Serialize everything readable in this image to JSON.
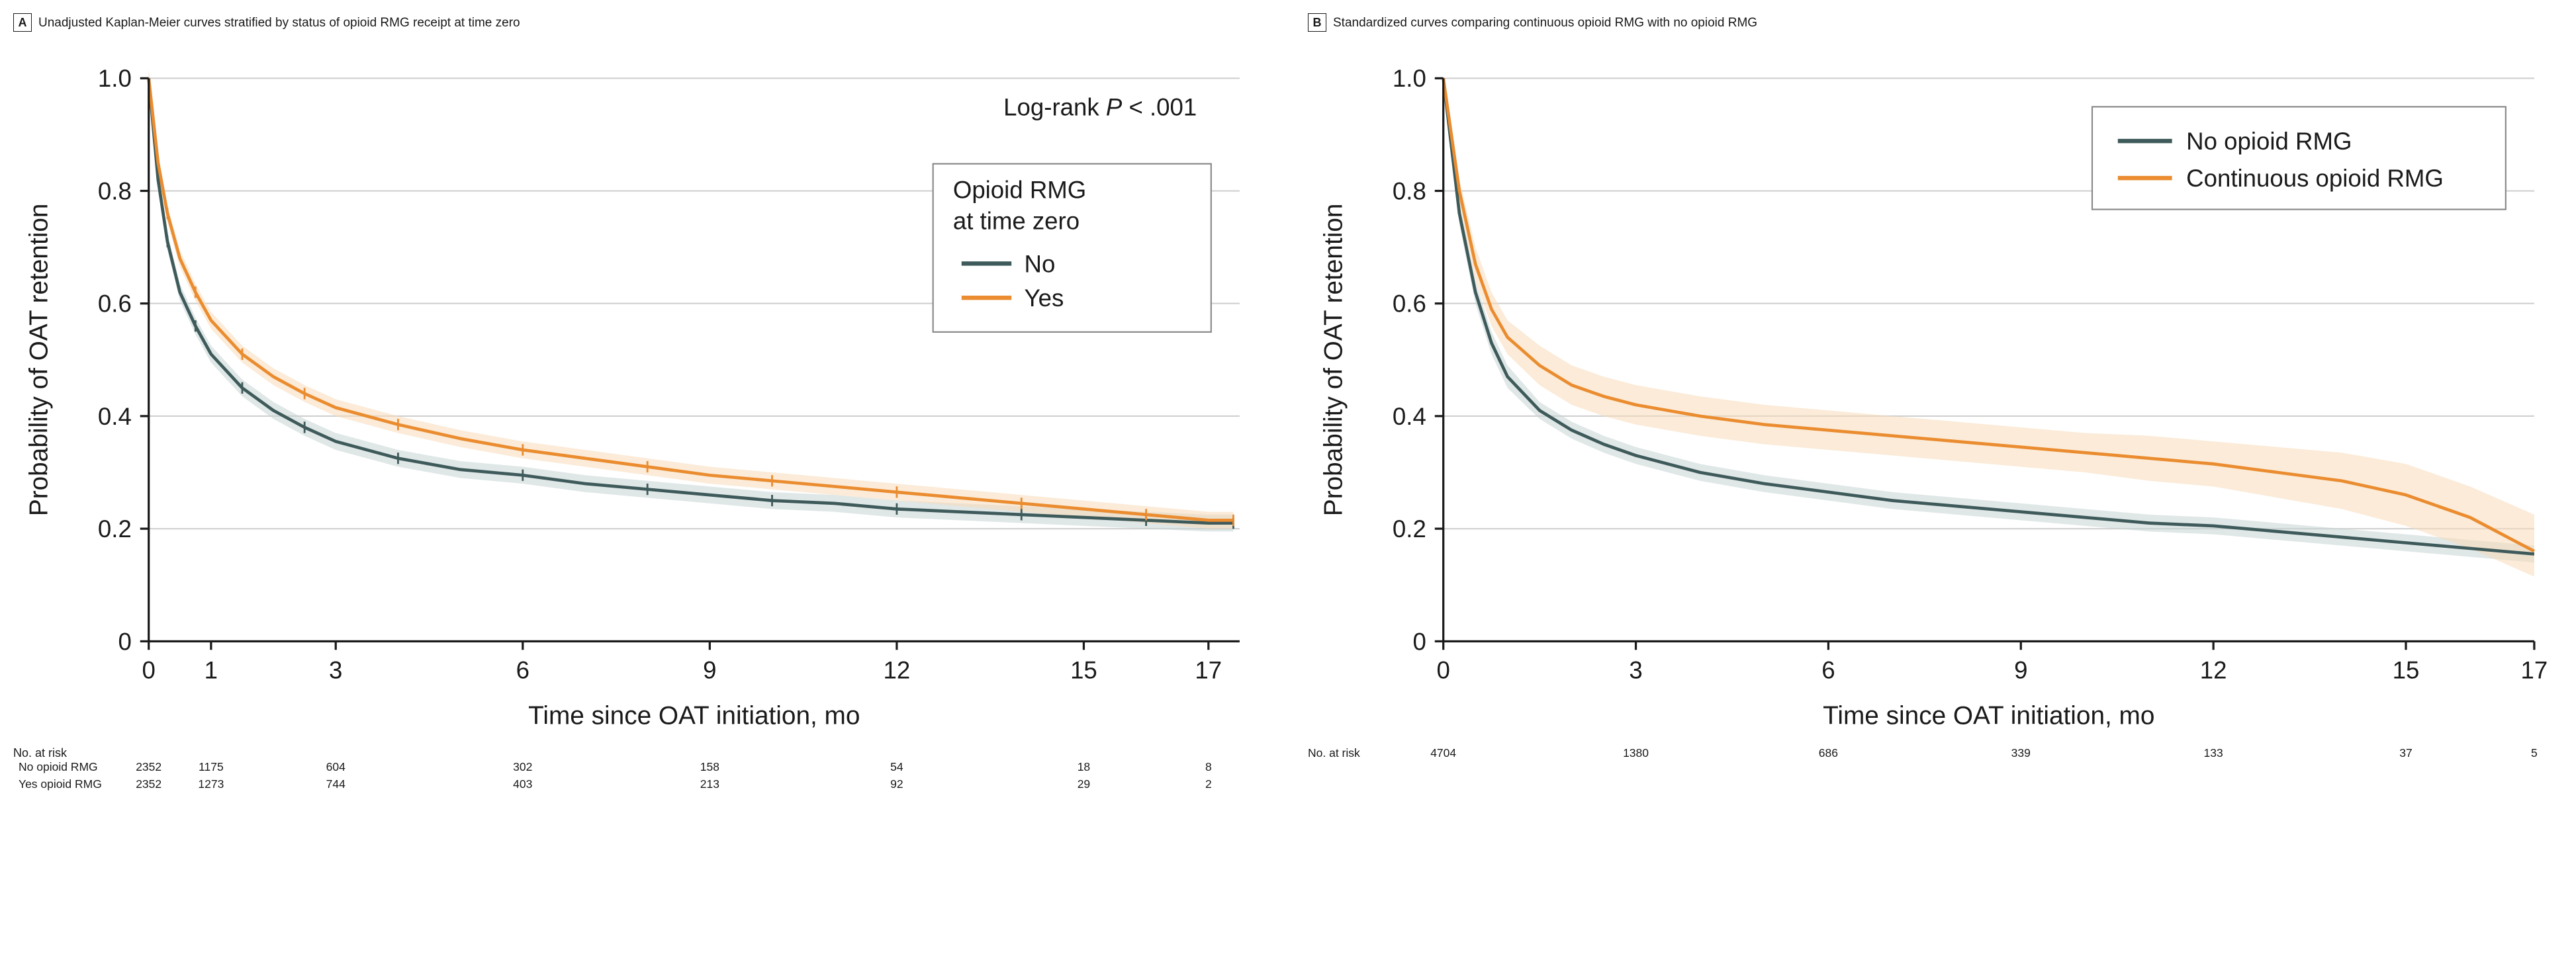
{
  "colors": {
    "series_no": "#3e5a5a",
    "series_no_ci": "#c7d4d4",
    "series_yes": "#ea8c2f",
    "series_yes_ci": "#f8dbb8",
    "axis": "#1a1a1a",
    "grid": "#d0d0d0",
    "text": "#1a1a1a",
    "legend_border": "#888888",
    "background": "#ffffff"
  },
  "typography": {
    "title_fontsize": 19,
    "axis_label_fontsize": 18,
    "tick_fontsize": 17,
    "legend_fontsize": 17,
    "annotation_fontsize": 17,
    "risk_fontsize": 17.5,
    "font_family": "Arial, Helvetica, sans-serif"
  },
  "panelA": {
    "letter": "A",
    "title": "Unadjusted Kaplan-Meier curves stratified by status of opioid RMG receipt at time zero",
    "ylabel": "Probability of OAT retention",
    "xlabel": "Time since OAT initiation, mo",
    "ylim": [
      0,
      1.0
    ],
    "yticks": [
      0,
      0.2,
      0.4,
      0.6,
      0.8,
      1.0
    ],
    "xlim": [
      0,
      17.5
    ],
    "xticks": [
      0,
      1,
      3,
      6,
      9,
      12,
      15,
      17
    ],
    "annotation": "Log-rank P < .001",
    "legend_title": "Opioid RMG at time zero",
    "legend_items": [
      {
        "label": "No",
        "color": "#3e5a5a"
      },
      {
        "label": "Yes",
        "color": "#ea8c2f"
      }
    ],
    "series_no": {
      "x": [
        0,
        0.15,
        0.3,
        0.5,
        0.75,
        1,
        1.5,
        2,
        2.5,
        3,
        4,
        5,
        6,
        7,
        8,
        9,
        10,
        11,
        12,
        13,
        14,
        15,
        16,
        17,
        17.4
      ],
      "y": [
        1.0,
        0.82,
        0.71,
        0.62,
        0.56,
        0.51,
        0.45,
        0.41,
        0.38,
        0.355,
        0.325,
        0.305,
        0.295,
        0.28,
        0.27,
        0.26,
        0.25,
        0.245,
        0.235,
        0.23,
        0.225,
        0.22,
        0.215,
        0.21,
        0.21
      ]
    },
    "series_yes": {
      "x": [
        0,
        0.15,
        0.3,
        0.5,
        0.75,
        1,
        1.5,
        2,
        2.5,
        3,
        4,
        5,
        6,
        7,
        8,
        9,
        10,
        11,
        12,
        13,
        14,
        15,
        16,
        17,
        17.4
      ],
      "y": [
        1.0,
        0.85,
        0.76,
        0.68,
        0.62,
        0.57,
        0.51,
        0.47,
        0.44,
        0.415,
        0.385,
        0.36,
        0.34,
        0.325,
        0.31,
        0.295,
        0.285,
        0.275,
        0.265,
        0.255,
        0.245,
        0.235,
        0.225,
        0.215,
        0.215
      ]
    },
    "ci_halfwidth": 0.015,
    "line_width": 2.2,
    "risk_label": "No. at risk",
    "risk_rows": [
      {
        "label": "No opioid RMG",
        "values": [
          2352,
          1175,
          604,
          302,
          158,
          54,
          18,
          8
        ]
      },
      {
        "label": "Yes opioid RMG",
        "values": [
          2352,
          1273,
          744,
          403,
          213,
          92,
          29,
          2
        ]
      }
    ]
  },
  "panelB": {
    "letter": "B",
    "title": "Standardized curves comparing continuous opioid RMG with no opioid RMG",
    "ylabel": "Probability of OAT retention",
    "xlabel": "Time since OAT initiation, mo",
    "ylim": [
      0,
      1.0
    ],
    "yticks": [
      0,
      0.2,
      0.4,
      0.6,
      0.8,
      1.0
    ],
    "xlim": [
      0,
      17
    ],
    "xticks": [
      0,
      3,
      6,
      9,
      12,
      15,
      17
    ],
    "legend_items": [
      {
        "label": "No opioid RMG",
        "color": "#3e5a5a"
      },
      {
        "label": "Continuous opioid RMG",
        "color": "#ea8c2f"
      }
    ],
    "series_no": {
      "x": [
        0,
        0.25,
        0.5,
        0.75,
        1,
        1.5,
        2,
        2.5,
        3,
        4,
        5,
        6,
        7,
        8,
        9,
        10,
        11,
        12,
        13,
        14,
        15,
        16,
        17
      ],
      "y": [
        1.0,
        0.76,
        0.62,
        0.53,
        0.47,
        0.41,
        0.375,
        0.35,
        0.33,
        0.3,
        0.28,
        0.265,
        0.25,
        0.24,
        0.23,
        0.22,
        0.21,
        0.205,
        0.195,
        0.185,
        0.175,
        0.165,
        0.155
      ],
      "ci_lo": [
        1.0,
        0.74,
        0.6,
        0.51,
        0.45,
        0.395,
        0.36,
        0.335,
        0.315,
        0.285,
        0.265,
        0.25,
        0.235,
        0.225,
        0.215,
        0.205,
        0.195,
        0.19,
        0.18,
        0.17,
        0.16,
        0.15,
        0.14
      ],
      "ci_hi": [
        1.0,
        0.78,
        0.64,
        0.55,
        0.49,
        0.425,
        0.39,
        0.365,
        0.345,
        0.315,
        0.295,
        0.28,
        0.265,
        0.255,
        0.245,
        0.235,
        0.225,
        0.22,
        0.21,
        0.2,
        0.19,
        0.18,
        0.17
      ]
    },
    "series_yes": {
      "x": [
        0,
        0.25,
        0.5,
        0.75,
        1,
        1.5,
        2,
        2.5,
        3,
        4,
        5,
        6,
        7,
        8,
        9,
        10,
        11,
        12,
        13,
        14,
        15,
        16,
        17
      ],
      "y": [
        1.0,
        0.8,
        0.67,
        0.59,
        0.54,
        0.49,
        0.455,
        0.435,
        0.42,
        0.4,
        0.385,
        0.375,
        0.365,
        0.355,
        0.345,
        0.335,
        0.325,
        0.315,
        0.3,
        0.285,
        0.26,
        0.22,
        0.16
      ],
      "ci_lo": [
        1.0,
        0.78,
        0.64,
        0.56,
        0.51,
        0.455,
        0.42,
        0.4,
        0.385,
        0.365,
        0.35,
        0.34,
        0.33,
        0.32,
        0.31,
        0.3,
        0.285,
        0.275,
        0.255,
        0.235,
        0.205,
        0.165,
        0.115
      ],
      "ci_hi": [
        1.0,
        0.82,
        0.7,
        0.62,
        0.57,
        0.525,
        0.49,
        0.47,
        0.455,
        0.435,
        0.42,
        0.41,
        0.4,
        0.39,
        0.38,
        0.37,
        0.365,
        0.355,
        0.345,
        0.335,
        0.315,
        0.275,
        0.225
      ]
    },
    "line_width": 2.2,
    "risk_label": "No. at risk",
    "risk_rows": [
      {
        "label": "",
        "values": [
          4704,
          1380,
          686,
          339,
          133,
          37,
          5
        ]
      }
    ]
  }
}
